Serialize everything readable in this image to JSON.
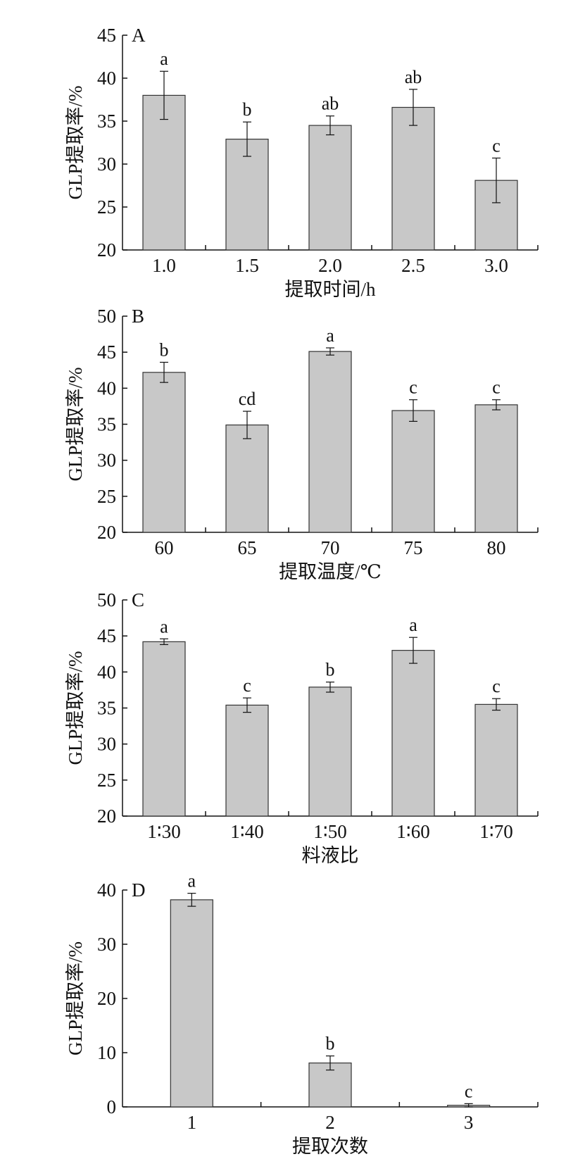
{
  "chart_data": [
    {
      "type": "bar",
      "panel_label": "A",
      "categories": [
        "1.0",
        "1.5",
        "2.0",
        "2.5",
        "3.0"
      ],
      "values": [
        38.0,
        32.9,
        34.5,
        36.6,
        28.1
      ],
      "errors": [
        2.8,
        2.0,
        1.1,
        2.1,
        2.6
      ],
      "significance": [
        "a",
        "b",
        "ab",
        "ab",
        "c"
      ],
      "ylim": [
        20,
        45
      ],
      "yticks": [
        20,
        25,
        30,
        35,
        40,
        45
      ],
      "ylabel": "GLP提取率/%",
      "xlabel": "提取时间/h",
      "grid": false
    },
    {
      "type": "bar",
      "panel_label": "B",
      "categories": [
        "60",
        "65",
        "70",
        "75",
        "80"
      ],
      "values": [
        42.2,
        34.9,
        45.1,
        36.9,
        37.7
      ],
      "errors": [
        1.4,
        1.9,
        0.5,
        1.5,
        0.7
      ],
      "significance": [
        "b",
        "cd",
        "a",
        "c",
        "c"
      ],
      "ylim": [
        20,
        50
      ],
      "yticks": [
        20,
        25,
        30,
        35,
        40,
        45,
        50
      ],
      "ylabel": "GLP提取率/%",
      "xlabel": "提取温度/℃",
      "grid": false
    },
    {
      "type": "bar",
      "panel_label": "C",
      "categories": [
        "1∶30",
        "1∶40",
        "1∶50",
        "1∶60",
        "1∶70"
      ],
      "values": [
        44.2,
        35.4,
        37.9,
        43.0,
        35.5
      ],
      "errors": [
        0.4,
        1.0,
        0.7,
        1.8,
        0.8
      ],
      "significance": [
        "a",
        "c",
        "b",
        "a",
        "c"
      ],
      "ylim": [
        20,
        50
      ],
      "yticks": [
        20,
        25,
        30,
        35,
        40,
        45,
        50
      ],
      "ylabel": "GLP提取率/%",
      "xlabel": "料液比",
      "grid": false
    },
    {
      "type": "bar",
      "panel_label": "D",
      "categories": [
        "1",
        "2",
        "3"
      ],
      "values": [
        38.2,
        8.1,
        0.3
      ],
      "errors": [
        1.2,
        1.3,
        0.3
      ],
      "significance": [
        "a",
        "b",
        "c"
      ],
      "ylim": [
        0,
        40
      ],
      "yticks": [
        0,
        10,
        20,
        30,
        40
      ],
      "ylabel": "GLP提取率/%",
      "xlabel": "提取次数",
      "grid": false
    }
  ],
  "colors": {
    "bar_fill": "#c8c8c8",
    "bar_stroke": "#333333",
    "axis": "#111111"
  }
}
